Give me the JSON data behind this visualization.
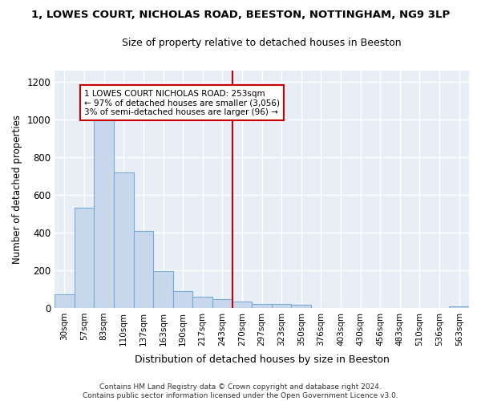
{
  "title": "1, LOWES COURT, NICHOLAS ROAD, BEESTON, NOTTINGHAM, NG9 3LP",
  "subtitle": "Size of property relative to detached houses in Beeston",
  "xlabel": "Distribution of detached houses by size in Beeston",
  "ylabel": "Number of detached properties",
  "bar_color": "#c8d8ec",
  "bar_edge_color": "#7aaad0",
  "fig_bg": "#ffffff",
  "plot_bg": "#e8eef6",
  "grid_color": "#ffffff",
  "categories": [
    "30sqm",
    "57sqm",
    "83sqm",
    "110sqm",
    "137sqm",
    "163sqm",
    "190sqm",
    "217sqm",
    "243sqm",
    "270sqm",
    "297sqm",
    "323sqm",
    "350sqm",
    "376sqm",
    "403sqm",
    "430sqm",
    "456sqm",
    "483sqm",
    "510sqm",
    "536sqm",
    "563sqm"
  ],
  "values": [
    70,
    530,
    1000,
    720,
    410,
    195,
    90,
    60,
    45,
    35,
    20,
    20,
    15,
    0,
    0,
    0,
    0,
    0,
    0,
    0,
    10
  ],
  "vline_x": 8.5,
  "vline_color": "#cc0000",
  "annotation_line1": "1 LOWES COURT NICHOLAS ROAD: 253sqm",
  "annotation_line2": "← 97% of detached houses are smaller (3,056)",
  "annotation_line3": "3% of semi-detached houses are larger (96) →",
  "footer": "Contains HM Land Registry data © Crown copyright and database right 2024.\nContains public sector information licensed under the Open Government Licence v3.0.",
  "ylim": [
    0,
    1260
  ],
  "yticks": [
    0,
    200,
    400,
    600,
    800,
    1000,
    1200
  ]
}
